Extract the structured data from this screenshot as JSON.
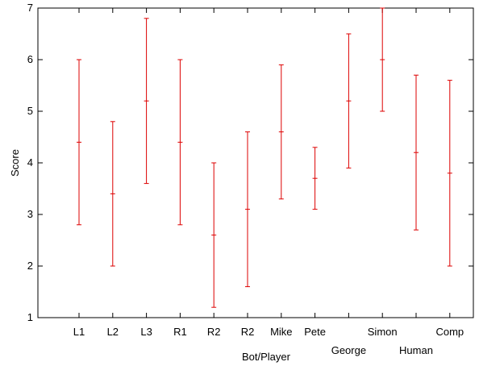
{
  "chart_data": {
    "type": "errorbar",
    "title": "",
    "xlabel": "Bot/Player",
    "ylabel": "Score",
    "ylim": [
      1,
      7
    ],
    "yticks": [
      1,
      2,
      3,
      4,
      5,
      6,
      7
    ],
    "grid": false,
    "legend": "none",
    "color": "#dd0000",
    "categories": [
      "L1",
      "L2",
      "L3",
      "R1",
      "R2",
      "R2",
      "Mike",
      "Pete",
      "George",
      "Simon",
      "Human",
      "Comp"
    ],
    "label_row": [
      "upper",
      "upper",
      "upper",
      "upper",
      "upper",
      "upper",
      "upper",
      "upper",
      "lower",
      "upper",
      "lower",
      "upper"
    ],
    "mean": [
      4.4,
      3.4,
      5.2,
      4.4,
      2.6,
      3.1,
      4.6,
      3.7,
      5.2,
      6.0,
      4.2,
      3.8
    ],
    "lower": [
      2.8,
      2.0,
      3.6,
      2.8,
      1.2,
      1.6,
      3.3,
      3.1,
      3.9,
      5.0,
      2.7,
      2.0
    ],
    "upper": [
      6.0,
      4.8,
      6.8,
      6.0,
      4.0,
      4.6,
      5.9,
      4.3,
      6.5,
      7.0,
      5.7,
      5.6
    ]
  }
}
